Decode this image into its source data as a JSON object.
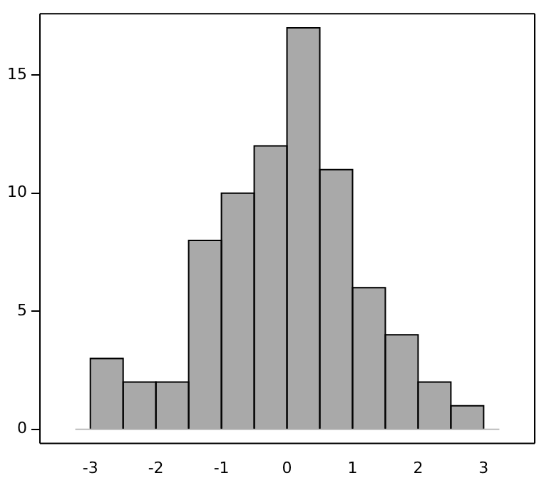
{
  "chart_data": {
    "type": "histogram",
    "bins": [
      -3,
      -2.5,
      -2,
      -1.5,
      -1,
      -0.5,
      0,
      0.5,
      1,
      1.5,
      2,
      2.5,
      3
    ],
    "values": [
      3,
      2,
      2,
      8,
      10,
      12,
      17,
      11,
      6,
      4,
      2,
      1
    ],
    "color": "#a9a9a9",
    "xlim": [
      -3.23,
      3.24
    ],
    "xticks": [
      -3,
      -2,
      -1,
      0,
      1,
      2,
      3
    ],
    "ylim": [
      -0.6,
      17.6
    ],
    "yticks": [
      0,
      5,
      10,
      15
    ]
  }
}
